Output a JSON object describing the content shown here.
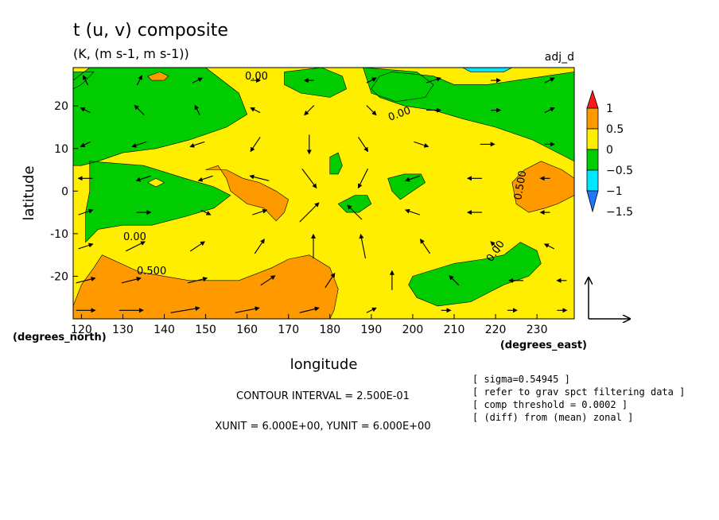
{
  "chart_data": {
    "type": "heatmap",
    "title": "t (u, v) composite",
    "subtitle": "(K, (m s-1, m s-1))",
    "label_right": "adj_d",
    "xlabel": "longitude",
    "ylabel": "latitude",
    "x_units": "(degrees_east)",
    "y_units": "(degrees_north)",
    "xlim": [
      118,
      239
    ],
    "ylim": [
      -30,
      29
    ],
    "x_ticks": [
      120,
      130,
      140,
      150,
      160,
      170,
      180,
      190,
      200,
      210,
      220,
      230
    ],
    "y_ticks": [
      20,
      10,
      0,
      -10,
      -20
    ],
    "colorbar": {
      "levels": [
        -1.5,
        -1,
        -0.5,
        0,
        0.5,
        1
      ],
      "tick_labels": [
        "1",
        "0.5",
        "0",
        "−0.5",
        "−1",
        "−1.5"
      ],
      "colors": [
        "#1e78ff",
        "#00e6ff",
        "#00cc00",
        "#ffee00",
        "#ff9900",
        "#ff1a1a"
      ]
    },
    "contour_labels": [
      "0.00",
      "0.00",
      "0.00",
      "0.500",
      "0.500",
      "0.00"
    ],
    "contour_interval": "CONTOUR INTERVAL = 2.500E-01",
    "unit_vectors": "XUNIT = 6.000E+00, YUNIT = 6.000E+00",
    "notes": [
      "[ sigma=0.54945 ]",
      "[ refer to grav spct filtering data ]",
      "[ comp threshold = 0.0002 ]",
      "[ (diff) from (mean) zonal ]"
    ],
    "regions": [
      {
        "value": 0.25,
        "color": "#ffee00",
        "poly": [
          [
            118,
            29
          ],
          [
            239,
            29
          ],
          [
            239,
            -30
          ],
          [
            118,
            -30
          ]
        ]
      },
      {
        "value": -0.25,
        "color": "#00cc00",
        "poly": [
          [
            118,
            26
          ],
          [
            122,
            29
          ],
          [
            150,
            29
          ],
          [
            158,
            23
          ],
          [
            160,
            18
          ],
          [
            155,
            15
          ],
          [
            146,
            12
          ],
          [
            138,
            10
          ],
          [
            130,
            9
          ],
          [
            124,
            7
          ],
          [
            120,
            6
          ],
          [
            118,
            6
          ]
        ]
      },
      {
        "value": -0.25,
        "color": "#00cc00",
        "poly": [
          [
            118,
            28
          ],
          [
            123,
            28
          ],
          [
            120,
            25
          ],
          [
            118,
            24
          ]
        ]
      },
      {
        "value": -0.25,
        "color": "#00cc00",
        "poly": [
          [
            122,
            7
          ],
          [
            135,
            6
          ],
          [
            145,
            3
          ],
          [
            152,
            1
          ],
          [
            156,
            -1
          ],
          [
            152,
            -4
          ],
          [
            145,
            -6
          ],
          [
            137,
            -8
          ],
          [
            130,
            -8
          ],
          [
            124,
            -9
          ],
          [
            121,
            -12
          ],
          [
            121,
            -5
          ],
          [
            122,
            0
          ]
        ]
      },
      {
        "value": 0.25,
        "color": "#ffee00",
        "poly": [
          [
            136,
            2
          ],
          [
            138,
            3
          ],
          [
            140,
            2
          ],
          [
            138,
            1
          ]
        ]
      },
      {
        "value": -0.25,
        "color": "#00cc00",
        "poly": [
          [
            169,
            28
          ],
          [
            178,
            29
          ],
          [
            183,
            27
          ],
          [
            184,
            24
          ],
          [
            180,
            22
          ],
          [
            173,
            23
          ],
          [
            169,
            25
          ]
        ]
      },
      {
        "value": -0.25,
        "color": "#00cc00",
        "poly": [
          [
            188,
            29
          ],
          [
            201,
            28
          ],
          [
            205,
            25
          ],
          [
            203,
            22
          ],
          [
            196,
            21
          ],
          [
            190,
            23
          ]
        ]
      },
      {
        "value": -0.25,
        "color": "#00cc00",
        "poly": [
          [
            195,
            28
          ],
          [
            205,
            27
          ],
          [
            210,
            25
          ],
          [
            218,
            25
          ],
          [
            225,
            26
          ],
          [
            232,
            27
          ],
          [
            239,
            28
          ],
          [
            239,
            7
          ],
          [
            235,
            9
          ],
          [
            229,
            12
          ],
          [
            220,
            15
          ],
          [
            212,
            17
          ],
          [
            205,
            19
          ],
          [
            198,
            20
          ],
          [
            192,
            22
          ],
          [
            190,
            24
          ],
          [
            192,
            27
          ]
        ]
      },
      {
        "value": -0.25,
        "color": "#00cc00",
        "poly": [
          [
            180,
            8
          ],
          [
            182,
            9
          ],
          [
            183,
            6
          ],
          [
            182,
            4
          ],
          [
            180,
            4
          ]
        ]
      },
      {
        "value": -0.25,
        "color": "#00cc00",
        "poly": [
          [
            182,
            -3
          ],
          [
            186,
            -1
          ],
          [
            189,
            -1
          ],
          [
            190,
            -3
          ],
          [
            187,
            -5
          ],
          [
            184,
            -5
          ]
        ]
      },
      {
        "value": -0.25,
        "color": "#00cc00",
        "poly": [
          [
            194,
            3
          ],
          [
            198,
            4
          ],
          [
            202,
            4
          ],
          [
            203,
            2
          ],
          [
            200,
            0
          ],
          [
            197,
            -2
          ],
          [
            195,
            0
          ]
        ]
      },
      {
        "value": -0.25,
        "color": "#00cc00",
        "poly": [
          [
            200,
            -20
          ],
          [
            210,
            -17
          ],
          [
            217,
            -16
          ],
          [
            222,
            -15
          ],
          [
            226,
            -12
          ],
          [
            230,
            -14
          ],
          [
            231,
            -17
          ],
          [
            228,
            -20
          ],
          [
            222,
            -22
          ],
          [
            218,
            -24
          ],
          [
            214,
            -26
          ],
          [
            206,
            -27
          ],
          [
            201,
            -25
          ],
          [
            199,
            -22
          ]
        ]
      },
      {
        "value": 0.75,
        "color": "#ff9900",
        "poly": [
          [
            125,
            -15
          ],
          [
            134,
            -19
          ],
          [
            146,
            -21
          ],
          [
            158,
            -21
          ],
          [
            166,
            -18
          ],
          [
            170,
            -16
          ],
          [
            175,
            -15
          ],
          [
            180,
            -18
          ],
          [
            182,
            -23
          ],
          [
            181,
            -28
          ],
          [
            180,
            -30
          ],
          [
            118,
            -30
          ],
          [
            118,
            -27
          ],
          [
            120,
            -22
          ],
          [
            123,
            -18
          ]
        ]
      },
      {
        "value": 0.75,
        "color": "#ff9900",
        "poly": [
          [
            150,
            5
          ],
          [
            153,
            6
          ],
          [
            155,
            3
          ],
          [
            156,
            0
          ],
          [
            160,
            -3
          ],
          [
            164,
            -4
          ],
          [
            167,
            -7
          ],
          [
            169,
            -5
          ],
          [
            170,
            -2
          ],
          [
            167,
            0
          ],
          [
            163,
            2
          ],
          [
            159,
            3
          ],
          [
            155,
            5
          ]
        ]
      },
      {
        "value": 0.75,
        "color": "#ff9900",
        "poly": [
          [
            137,
            26
          ],
          [
            140,
            26
          ],
          [
            141,
            27
          ],
          [
            139,
            28
          ],
          [
            136,
            27
          ]
        ]
      },
      {
        "value": 0.75,
        "color": "#ff9900",
        "poly": [
          [
            224,
            2
          ],
          [
            227,
            5
          ],
          [
            231,
            7
          ],
          [
            236,
            5
          ],
          [
            239,
            3
          ],
          [
            239,
            -1
          ],
          [
            235,
            -3
          ],
          [
            232,
            -4
          ],
          [
            228,
            -5
          ],
          [
            225,
            -3
          ]
        ]
      },
      {
        "value": -0.75,
        "color": "#00e6ff",
        "poly": [
          [
            212,
            29
          ],
          [
            224,
            29
          ],
          [
            222,
            28
          ],
          [
            214,
            28
          ]
        ]
      }
    ],
    "wind_vectors": [
      [
        121,
        -28,
        4,
        0
      ],
      [
        132,
        -28,
        5,
        0
      ],
      [
        145,
        -28,
        6,
        1
      ],
      [
        160,
        -28,
        5,
        1
      ],
      [
        175,
        -28,
        4,
        1
      ],
      [
        190,
        -28,
        2,
        1
      ],
      [
        208,
        -28,
        2,
        0
      ],
      [
        224,
        -28,
        2,
        0
      ],
      [
        236,
        -28,
        2,
        0
      ],
      [
        121,
        -21,
        4,
        1
      ],
      [
        132,
        -21,
        4,
        1
      ],
      [
        148,
        -21,
        4,
        1
      ],
      [
        165,
        -21,
        3,
        2
      ],
      [
        180,
        -21,
        2,
        3
      ],
      [
        195,
        -21,
        0,
        4
      ],
      [
        210,
        -21,
        -2,
        2
      ],
      [
        225,
        -21,
        -3,
        0
      ],
      [
        236,
        -21,
        -2,
        0
      ],
      [
        121,
        -13,
        3,
        1
      ],
      [
        133,
        -13,
        4,
        2
      ],
      [
        148,
        -13,
        3,
        2
      ],
      [
        163,
        -13,
        2,
        3
      ],
      [
        176,
        -13,
        0,
        5
      ],
      [
        188,
        -13,
        -1,
        5
      ],
      [
        203,
        -13,
        -2,
        3
      ],
      [
        220,
        -13,
        -2,
        2
      ],
      [
        233,
        -13,
        -2,
        1
      ],
      [
        121,
        -5,
        3,
        1
      ],
      [
        135,
        -5,
        3,
        0
      ],
      [
        150,
        -5,
        2,
        -1
      ],
      [
        163,
        -5,
        3,
        1
      ],
      [
        175,
        -5,
        4,
        4
      ],
      [
        186,
        -5,
        -3,
        3
      ],
      [
        200,
        -5,
        -3,
        1
      ],
      [
        215,
        -5,
        -3,
        0
      ],
      [
        232,
        -5,
        -2,
        0
      ],
      [
        121,
        3,
        -3,
        0
      ],
      [
        135,
        3,
        -3,
        -1
      ],
      [
        150,
        3,
        -3,
        -1
      ],
      [
        163,
        3,
        -4,
        1
      ],
      [
        175,
        3,
        3,
        -4
      ],
      [
        188,
        3,
        -2,
        -4
      ],
      [
        200,
        3,
        -3,
        -1
      ],
      [
        215,
        3,
        -3,
        0
      ],
      [
        232,
        3,
        -2,
        0
      ],
      [
        121,
        11,
        -2,
        -1
      ],
      [
        134,
        11,
        -3,
        -1
      ],
      [
        148,
        11,
        -3,
        -1
      ],
      [
        162,
        11,
        -2,
        -3
      ],
      [
        175,
        11,
        0,
        -4
      ],
      [
        188,
        11,
        2,
        -3
      ],
      [
        202,
        11,
        3,
        -1
      ],
      [
        218,
        11,
        3,
        0
      ],
      [
        233,
        11,
        2,
        0
      ],
      [
        121,
        19,
        -2,
        1
      ],
      [
        134,
        19,
        -2,
        2
      ],
      [
        148,
        19,
        -1,
        2
      ],
      [
        162,
        19,
        -2,
        1
      ],
      [
        175,
        19,
        -2,
        -2
      ],
      [
        190,
        19,
        2,
        -2
      ],
      [
        205,
        19,
        3,
        0
      ],
      [
        220,
        19,
        2,
        0
      ],
      [
        233,
        19,
        2,
        1
      ],
      [
        121,
        26,
        -1,
        2
      ],
      [
        134,
        26,
        1,
        2
      ],
      [
        148,
        26,
        2,
        1
      ],
      [
        162,
        26,
        2,
        0
      ],
      [
        175,
        26,
        -2,
        0
      ],
      [
        190,
        26,
        2,
        1
      ],
      [
        205,
        26,
        3,
        1
      ],
      [
        220,
        26,
        2,
        0
      ],
      [
        233,
        26,
        2,
        1
      ]
    ]
  }
}
